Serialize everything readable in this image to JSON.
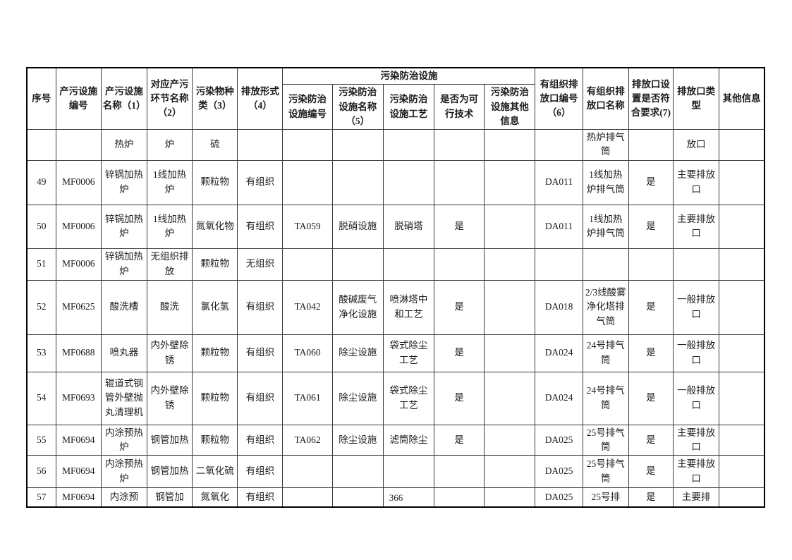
{
  "page": {
    "number": "366"
  },
  "table": {
    "group_header": "污染防治设施",
    "columns": [
      "序号",
      "产污设施编号",
      "产污设施名称（1）",
      "对应产污环节名称（2）",
      "污染物种类（3）",
      "排放形式（4）",
      "污染防治设施编号",
      "污染防治设施名称（5）",
      "污染防治设施工艺",
      "是否为可行技术",
      "污染防治设施其他信息",
      "有组织排放口编号（6）",
      "有组织排放口名称",
      "排放口设置是否符合要求(7)",
      "排放口类型",
      "其他信息"
    ],
    "rows": [
      [
        "",
        "",
        "热炉",
        "炉",
        "硫",
        "",
        "",
        "",
        "",
        "",
        "",
        "",
        "热炉排气筒",
        "",
        "放口",
        ""
      ],
      [
        "49",
        "MF0006",
        "锌锅加热炉",
        "1线加热炉",
        "颗粒物",
        "有组织",
        "",
        "",
        "",
        "",
        "",
        "DA011",
        "1线加热炉排气筒",
        "是",
        "主要排放口",
        ""
      ],
      [
        "50",
        "MF0006",
        "锌锅加热炉",
        "1线加热炉",
        "氮氧化物",
        "有组织",
        "TA059",
        "脱硝设施",
        "脱硝塔",
        "是",
        "",
        "DA011",
        "1线加热炉排气筒",
        "是",
        "主要排放口",
        ""
      ],
      [
        "51",
        "MF0006",
        "锌锅加热炉",
        "无组织排放",
        "颗粒物",
        "无组织",
        "",
        "",
        "",
        "",
        "",
        "",
        "",
        "",
        "",
        ""
      ],
      [
        "52",
        "MF0625",
        "酸洗槽",
        "酸洗",
        "氯化氢",
        "有组织",
        "TA042",
        "酸碱废气净化设施",
        "喷淋塔中和工艺",
        "是",
        "",
        "DA018",
        "2/3线酸雾净化塔排气筒",
        "是",
        "一般排放口",
        ""
      ],
      [
        "53",
        "MF0688",
        "喷丸器",
        "内外壁除锈",
        "颗粒物",
        "有组织",
        "TA060",
        "除尘设施",
        "袋式除尘工艺",
        "是",
        "",
        "DA024",
        "24号排气筒",
        "是",
        "一般排放口",
        ""
      ],
      [
        "54",
        "MF0693",
        "辊道式钢管外壁抛丸清理机",
        "内外壁除锈",
        "颗粒物",
        "有组织",
        "TA061",
        "除尘设施",
        "袋式除尘工艺",
        "是",
        "",
        "DA024",
        "24号排气筒",
        "是",
        "一般排放口",
        ""
      ],
      [
        "55",
        "MF0694",
        "内涂预热炉",
        "钢管加热",
        "颗粒物",
        "有组织",
        "TA062",
        "除尘设施",
        "滤筒除尘",
        "是",
        "",
        "DA025",
        "25号排气筒",
        "是",
        "主要排放口",
        ""
      ],
      [
        "56",
        "MF0694",
        "内涂预热炉",
        "钢管加热",
        "二氧化硫",
        "有组织",
        "",
        "",
        "",
        "",
        "",
        "DA025",
        "25号排气筒",
        "是",
        "主要排放口",
        ""
      ],
      [
        "57",
        "MF0694",
        "内涂预",
        "钢管加",
        "氮氧化",
        "有组织",
        "",
        "",
        "",
        "",
        "",
        "DA025",
        "25号排",
        "是",
        "主要排",
        ""
      ]
    ]
  }
}
